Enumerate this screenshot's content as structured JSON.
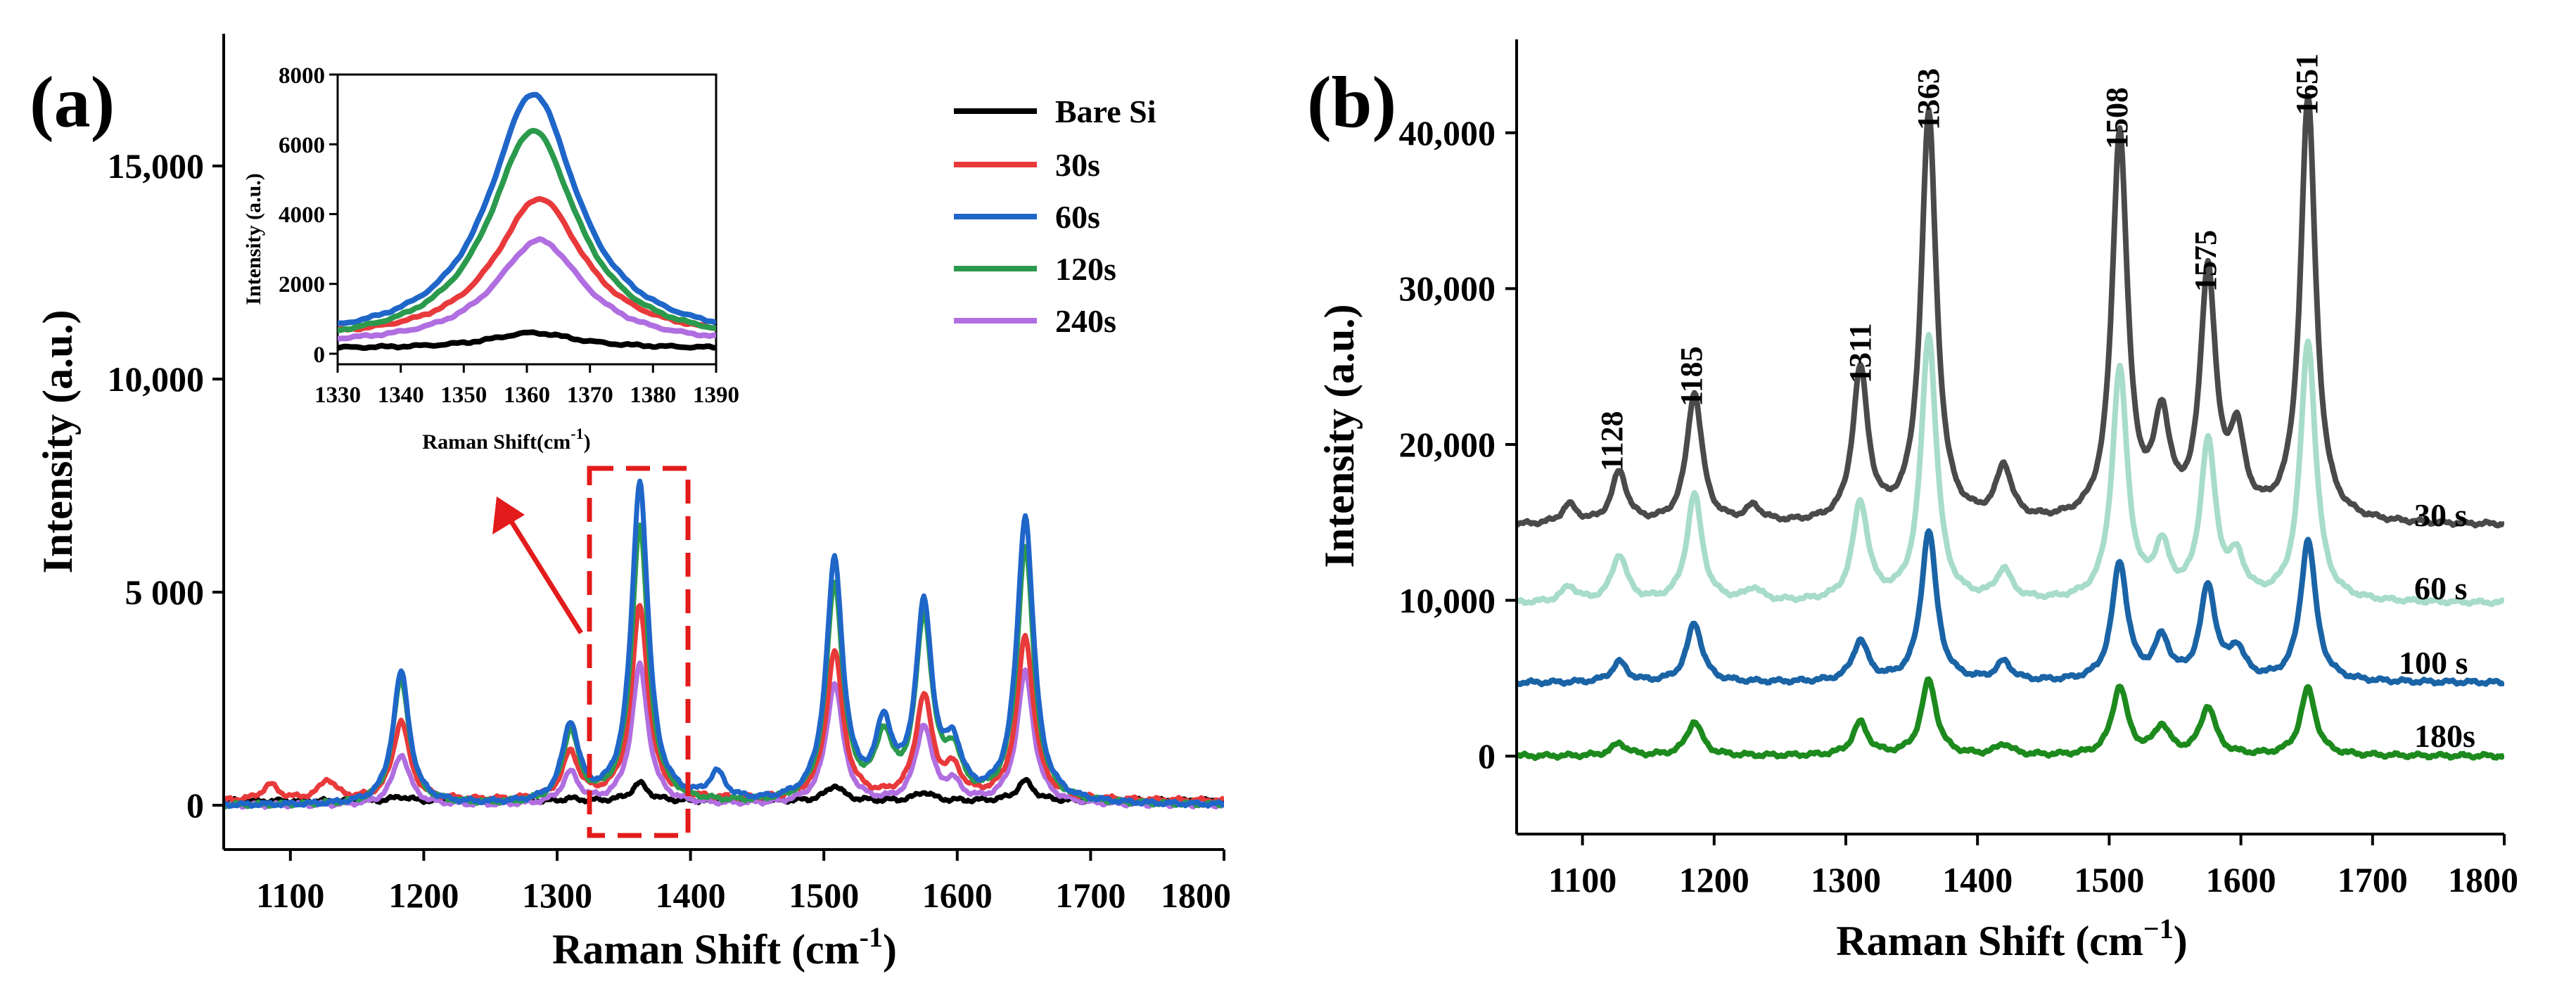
{
  "panels": [
    {
      "label": "(a)",
      "x_title": "Raman Shift (cm",
      "x_sup": "-1",
      "x_close": ")",
      "y_title": "Intensity (a.u.)",
      "x_ticks": [
        "1100",
        "1200",
        "1300",
        "1400",
        "1500",
        "1600",
        "1700",
        "1800"
      ],
      "y_ticks": [
        "0",
        "5 000",
        "10,000",
        "15,000"
      ]
    },
    {
      "label": "(b)",
      "x_title": "Raman Shift (cm",
      "x_sup": "−1",
      "x_close": ")",
      "y_title": "Intensity (a.u.)",
      "x_ticks": [
        "1100",
        "1200",
        "1300",
        "1400",
        "1500",
        "1600",
        "1700",
        "1800"
      ],
      "y_ticks": [
        "0",
        "10,000",
        "20,000",
        "30,000",
        "40,000"
      ],
      "peak_labels": [
        "1128",
        "1185",
        "1311",
        "1363",
        "1508",
        "1575",
        "1651"
      ],
      "series_labels": [
        "30 s",
        "60 s",
        "100 s",
        "180s"
      ]
    }
  ],
  "inset": {
    "x_title": "Raman Shift(cm",
    "x_sup": "-1",
    "x_close": ")",
    "y_title": "Intensity (a.u.)",
    "x_ticks": [
      "1330",
      "1340",
      "1350",
      "1360",
      "1370",
      "1380",
      "1390"
    ],
    "y_ticks": [
      "0",
      "2000",
      "4000",
      "6000",
      "8000"
    ]
  },
  "legend": [
    "Bare Si",
    "30s",
    "60s",
    "120s",
    "240s"
  ],
  "colors": {
    "bare": "#000000",
    "s30": "#e8393b",
    "s60": "#1f66c9",
    "s120": "#2b9a4d",
    "s240": "#b06ee0",
    "b30": "#4a4a4a",
    "b60": "#a7dcc8",
    "b100": "#1a64a6",
    "b180": "#1d8a1d",
    "highlight": "#e31b1b"
  },
  "chart_data": [
    {
      "type": "line",
      "title": "(a)",
      "xlabel": "Raman Shift (cm-1)",
      "ylabel": "Intensity (a.u.)",
      "xlim": [
        1050,
        1800
      ],
      "ylim": [
        -1000,
        17500
      ],
      "series": [
        {
          "name": "Bare Si",
          "baseline": 100,
          "peaks": [
            [
              1183,
              200
            ],
            [
              1310,
              150
            ],
            [
              1362,
              500
            ],
            [
              1508,
              450
            ],
            [
              1575,
              300
            ],
            [
              1651,
              550
            ]
          ]
        },
        {
          "name": "30s",
          "baseline": 100,
          "peaks": [
            [
              1085,
              450
            ],
            [
              1128,
              550
            ],
            [
              1183,
              1900
            ],
            [
              1310,
              1150
            ],
            [
              1362,
              4500
            ],
            [
              1508,
              3450
            ],
            [
              1575,
              2400
            ],
            [
              1597,
              700
            ],
            [
              1651,
              3800
            ]
          ]
        },
        {
          "name": "60s",
          "baseline": 0,
          "peaks": [
            [
              1183,
              3000
            ],
            [
              1310,
              1750
            ],
            [
              1362,
              7300
            ],
            [
              1420,
              600
            ],
            [
              1508,
              5450
            ],
            [
              1545,
              1600
            ],
            [
              1575,
              4350
            ],
            [
              1597,
              1100
            ],
            [
              1651,
              6500
            ]
          ]
        },
        {
          "name": "120s",
          "baseline": 0,
          "peaks": [
            [
              1183,
              2850
            ],
            [
              1310,
              1600
            ],
            [
              1362,
              6300
            ],
            [
              1508,
              4950
            ],
            [
              1545,
              1350
            ],
            [
              1575,
              4100
            ],
            [
              1597,
              950
            ],
            [
              1651,
              5800
            ]
          ]
        },
        {
          "name": "240s",
          "baseline": 0,
          "peaks": [
            [
              1183,
              1150
            ],
            [
              1310,
              700
            ],
            [
              1362,
              3150
            ],
            [
              1508,
              2750
            ],
            [
              1575,
              1750
            ],
            [
              1597,
              400
            ],
            [
              1651,
              3000
            ]
          ]
        }
      ]
    },
    {
      "type": "line",
      "title": "inset",
      "xlabel": "Raman Shift(cm-1)",
      "ylabel": "Intensity (a.u.)",
      "xlim": [
        1330,
        1390
      ],
      "ylim": [
        -300,
        8000
      ],
      "series": [
        {
          "name": "Bare Si",
          "center": 1361,
          "peak": 600,
          "base": 150
        },
        {
          "name": "30s",
          "center": 1362,
          "peak": 4450,
          "base": 400
        },
        {
          "name": "60s",
          "center": 1361,
          "peak": 7450,
          "base": 350
        },
        {
          "name": "120s",
          "center": 1361,
          "peak": 6400,
          "base": 250
        },
        {
          "name": "240s",
          "center": 1362,
          "peak": 3250,
          "base": 250
        }
      ]
    },
    {
      "type": "line",
      "title": "(b)",
      "xlabel": "Raman Shift (cm−1)",
      "ylabel": "Intensity (a.u.)",
      "xlim": [
        1050,
        1800
      ],
      "ylim": [
        -5000,
        46000
      ],
      "series": [
        {
          "name": "30 s",
          "baseline": 14800,
          "peaks": [
            [
              1090,
              16000
            ],
            [
              1128,
              18100
            ],
            [
              1185,
              23200
            ],
            [
              1230,
              15800
            ],
            [
              1311,
              24500
            ],
            [
              1363,
              41000
            ],
            [
              1420,
              18200
            ],
            [
              1508,
              39700
            ],
            [
              1540,
              21000
            ],
            [
              1575,
              30600
            ],
            [
              1597,
              19800
            ],
            [
              1651,
              42000
            ]
          ]
        },
        {
          "name": "60 s",
          "baseline": 9800,
          "peaks": [
            [
              1090,
              10800
            ],
            [
              1128,
              12800
            ],
            [
              1185,
              16700
            ],
            [
              1230,
              10600
            ],
            [
              1311,
              16100
            ],
            [
              1363,
              26900
            ],
            [
              1420,
              11700
            ],
            [
              1508,
              24600
            ],
            [
              1540,
              13000
            ],
            [
              1575,
              19800
            ],
            [
              1597,
              12200
            ],
            [
              1651,
              26500
            ]
          ]
        },
        {
          "name": "100 s",
          "baseline": 4700,
          "peaks": [
            [
              1128,
              6000
            ],
            [
              1185,
              8500
            ],
            [
              1311,
              7300
            ],
            [
              1363,
              14400
            ],
            [
              1420,
              5900
            ],
            [
              1508,
              12300
            ],
            [
              1540,
              7300
            ],
            [
              1575,
              10700
            ],
            [
              1597,
              6600
            ],
            [
              1651,
              13800
            ]
          ]
        },
        {
          "name": "180s",
          "baseline": 0,
          "peaks": [
            [
              1128,
              800
            ],
            [
              1185,
              2200
            ],
            [
              1311,
              2100
            ],
            [
              1363,
              4800
            ],
            [
              1420,
              700
            ],
            [
              1508,
              4400
            ],
            [
              1540,
              1800
            ],
            [
              1575,
              3100
            ],
            [
              1651,
              4300
            ]
          ]
        }
      ],
      "peak_labels": [
        1128,
        1185,
        1311,
        1363,
        1508,
        1575,
        1651
      ]
    }
  ]
}
